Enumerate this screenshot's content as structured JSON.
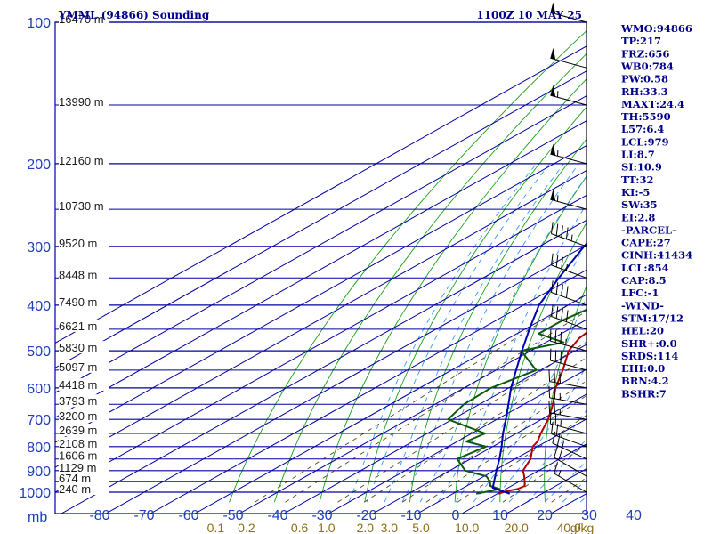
{
  "header": {
    "station": "YMML (94866) Sounding",
    "time": "1100Z 10 MAY 25"
  },
  "chart_data": {
    "type": "line",
    "title": "YMML (94866) Sounding",
    "xlabel": "",
    "ylabel": "mb",
    "pressure_ticks": [
      100,
      200,
      300,
      400,
      500,
      600,
      700,
      800,
      900,
      1000
    ],
    "temperature_ticks": [
      -80,
      -70,
      -60,
      -50,
      -40,
      -30,
      -20,
      -10,
      0,
      10,
      20,
      30,
      40
    ],
    "temperature_tick_labels": [
      "-80",
      "-70",
      "-60",
      "-50",
      "-40",
      "-30",
      "-20",
      "-10",
      "0",
      "10",
      "20",
      "30",
      "40"
    ],
    "mixing_ratio_labels": [
      "0.1",
      "0.2",
      "0.6",
      "1.0",
      "2.0",
      "3.0",
      "5.0",
      "10.0",
      "20.0",
      "40.0",
      "g/kg"
    ],
    "height_labels": [
      {
        "p": 100,
        "text": "16470 m"
      },
      {
        "p": 150,
        "text": "13990 m"
      },
      {
        "p": 200,
        "text": "12160 m"
      },
      {
        "p": 250,
        "text": "10730 m"
      },
      {
        "p": 300,
        "text": "9520 m"
      },
      {
        "p": 350,
        "text": "8448 m"
      },
      {
        "p": 400,
        "text": "7490 m"
      },
      {
        "p": 450,
        "text": "6621 m"
      },
      {
        "p": 500,
        "text": "5830 m"
      },
      {
        "p": 550,
        "text": "5097 m"
      },
      {
        "p": 600,
        "text": "4418 m"
      },
      {
        "p": 650,
        "text": "3793 m"
      },
      {
        "p": 700,
        "text": "3200 m"
      },
      {
        "p": 750,
        "text": "2639 m"
      },
      {
        "p": 800,
        "text": "2108 m"
      },
      {
        "p": 850,
        "text": "1606 m"
      },
      {
        "p": 900,
        "text": "1129 m"
      },
      {
        "p": 950,
        "text": "674 m"
      },
      {
        "p": 1000,
        "text": "240 m"
      }
    ],
    "series": [
      {
        "name": "Temperature",
        "color": "#b00000",
        "points": [
          {
            "p": 1008,
            "t": 10.3
          },
          {
            "p": 995,
            "t": 10.9
          },
          {
            "p": 985,
            "t": 12.6
          },
          {
            "p": 970,
            "t": 13.0
          },
          {
            "p": 950,
            "t": 11.3
          },
          {
            "p": 925,
            "t": 9.0
          },
          {
            "p": 900,
            "t": 6.5
          },
          {
            "p": 850,
            "t": 3.5
          },
          {
            "p": 800,
            "t": -1.0
          },
          {
            "p": 780,
            "t": -2.0
          },
          {
            "p": 750,
            "t": -4.5
          },
          {
            "p": 700,
            "t": -8.5
          },
          {
            "p": 650,
            "t": -13.5
          },
          {
            "p": 600,
            "t": -19.5
          },
          {
            "p": 550,
            "t": -25.0
          },
          {
            "p": 500,
            "t": -31.5
          },
          {
            "p": 470,
            "t": -34.2
          },
          {
            "p": 450,
            "t": -35.1
          },
          {
            "p": 400,
            "t": -41.3
          },
          {
            "p": 350,
            "t": -46.5
          },
          {
            "p": 300,
            "t": -52.0
          },
          {
            "p": 250,
            "t": -57.5
          },
          {
            "p": 220,
            "t": -57.3
          },
          {
            "p": 200,
            "t": -55.1
          },
          {
            "p": 190,
            "t": -57.3
          },
          {
            "p": 150,
            "t": -63.5
          },
          {
            "p": 120,
            "t": -66.5
          },
          {
            "p": 110,
            "t": -65.0
          },
          {
            "p": 100,
            "t": -62.5
          }
        ]
      },
      {
        "name": "Dewpoint",
        "color": "#0b5a0b",
        "points": [
          {
            "p": 1008,
            "t": 5.3
          },
          {
            "p": 985,
            "t": 8.6
          },
          {
            "p": 970,
            "t": 5.3
          },
          {
            "p": 950,
            "t": 3.5
          },
          {
            "p": 925,
            "t": 0.5
          },
          {
            "p": 900,
            "t": -6.5
          },
          {
            "p": 850,
            "t": -13.0
          },
          {
            "p": 800,
            "t": -11.5
          },
          {
            "p": 780,
            "t": -18.0
          },
          {
            "p": 750,
            "t": -17.0
          },
          {
            "p": 700,
            "t": -31.0
          },
          {
            "p": 650,
            "t": -33.5
          },
          {
            "p": 600,
            "t": -34.0
          },
          {
            "p": 550,
            "t": -31.0
          },
          {
            "p": 500,
            "t": -42.2
          },
          {
            "p": 480,
            "t": -36.0
          },
          {
            "p": 460,
            "t": -45.1
          },
          {
            "p": 430,
            "t": -45.1
          },
          {
            "p": 400,
            "t": -43.5
          },
          {
            "p": 350,
            "t": -56.0
          },
          {
            "p": 300,
            "t": -64.0
          },
          {
            "p": 250,
            "t": -67.0
          },
          {
            "p": 200,
            "t": -79.0
          },
          {
            "p": 180,
            "t": -81.0
          }
        ]
      },
      {
        "name": "Parcel",
        "color": "#0000b4",
        "points": [
          {
            "p": 1008,
            "t": 12.8
          },
          {
            "p": 979,
            "t": 6.6
          },
          {
            "p": 900,
            "t": 0.5
          },
          {
            "p": 850,
            "t": -3.5
          },
          {
            "p": 800,
            "t": -8.0
          },
          {
            "p": 750,
            "t": -13.0
          },
          {
            "p": 700,
            "t": -18.0
          },
          {
            "p": 650,
            "t": -23.5
          },
          {
            "p": 600,
            "t": -29.5
          },
          {
            "p": 550,
            "t": -35.5
          },
          {
            "p": 500,
            "t": -42.0
          },
          {
            "p": 450,
            "t": -49.0
          },
          {
            "p": 400,
            "t": -56.5
          },
          {
            "p": 350,
            "t": -63.0
          },
          {
            "p": 300,
            "t": -70.0
          },
          {
            "p": 250,
            "t": -77.0
          },
          {
            "p": 200,
            "t": -84.0
          }
        ]
      }
    ],
    "wind_barbs": [
      {
        "p": 1000,
        "dir": 300,
        "spd": 15
      },
      {
        "p": 925,
        "dir": 300,
        "spd": 20
      },
      {
        "p": 850,
        "dir": 295,
        "spd": 25
      },
      {
        "p": 800,
        "dir": 290,
        "spd": 25
      },
      {
        "p": 750,
        "dir": 285,
        "spd": 25
      },
      {
        "p": 700,
        "dir": 280,
        "spd": 25
      },
      {
        "p": 650,
        "dir": 280,
        "spd": 25
      },
      {
        "p": 600,
        "dir": 280,
        "spd": 30
      },
      {
        "p": 550,
        "dir": 285,
        "spd": 30
      },
      {
        "p": 500,
        "dir": 285,
        "spd": 35
      },
      {
        "p": 450,
        "dir": 290,
        "spd": 40
      },
      {
        "p": 400,
        "dir": 290,
        "spd": 40
      },
      {
        "p": 350,
        "dir": 290,
        "spd": 35
      },
      {
        "p": 300,
        "dir": 290,
        "spd": 45
      },
      {
        "p": 250,
        "dir": 285,
        "spd": 55
      },
      {
        "p": 200,
        "dir": 285,
        "spd": 55
      },
      {
        "p": 150,
        "dir": 285,
        "spd": 55
      },
      {
        "p": 125,
        "dir": 285,
        "spd": 50
      },
      {
        "p": 100,
        "dir": 285,
        "spd": 50
      }
    ],
    "ylim": [
      1000,
      100
    ],
    "xlim": [
      -80,
      40
    ],
    "grid": true,
    "legend": "none"
  },
  "indices": [
    "WMO:94866",
    "TP:217",
    "FRZ:656",
    "WB0:784",
    "PW:0.58",
    "RH:33.3",
    "MAXT:24.4",
    "TH:5590",
    "L57:6.4",
    "LCL:979",
    "LI:8.7",
    "SI:10.9",
    "TT:32",
    "KI:-5",
    "SW:35",
    "EI:2.8",
    "-PARCEL-",
    "CAPE:27",
    "CINH:41434",
    "LCL:854",
    "CAP:8.5",
    "LFC:-1",
    "-WIND-",
    "STM:17/12",
    "HEL:20",
    "SHR+:0.0",
    "SRDS:114",
    "EHI:0.0",
    "BRN:4.2",
    "BSHR:7"
  ],
  "colors": {
    "grid_isobar": "#0000a0",
    "dry_adiabat": "#16a316",
    "moist_adiabat": "#3399ff",
    "mixing_ratio": "#5a4a1a",
    "label_blue": "#1f3fbf",
    "label_mix": "#8b6f1a",
    "index_text": "#00008b"
  }
}
